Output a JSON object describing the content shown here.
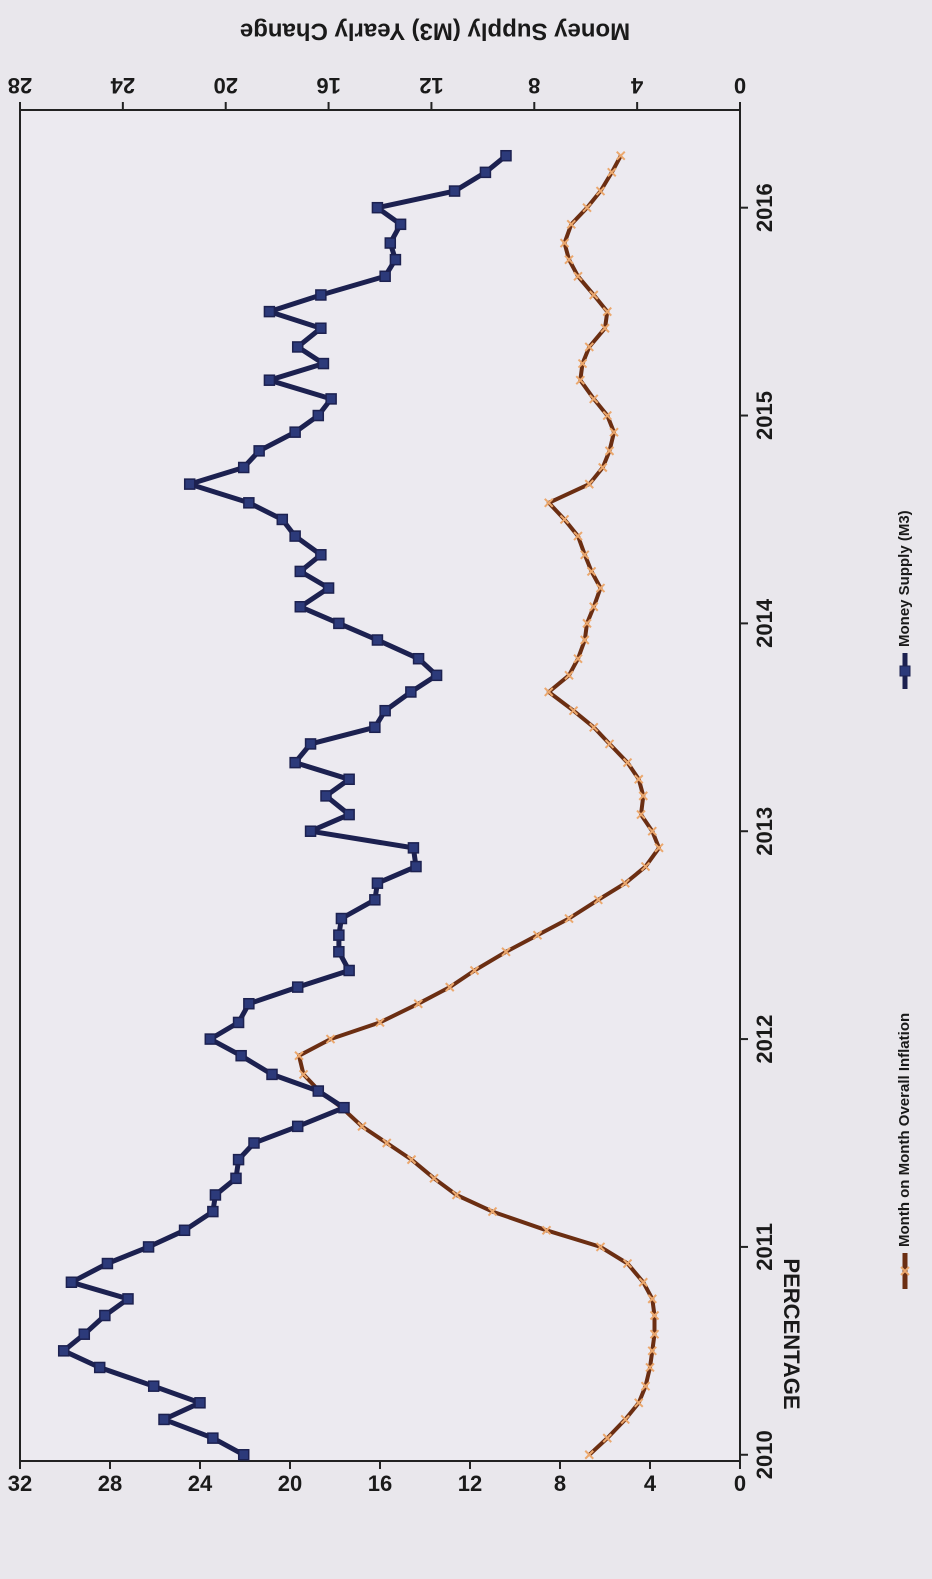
{
  "chart_data": {
    "type": "line",
    "y2_label": "Money Supply  (M3) Yearly Change",
    "ylabel": "PERCENTAGE",
    "x": [
      2010,
      2010.08,
      2010.17,
      2010.25,
      2010.33,
      2010.42,
      2010.5,
      2010.58,
      2010.67,
      2010.75,
      2010.83,
      2010.92,
      2011,
      2011.08,
      2011.17,
      2011.25,
      2011.33,
      2011.42,
      2011.5,
      2011.58,
      2011.67,
      2011.75,
      2011.83,
      2011.92,
      2012,
      2012.08,
      2012.17,
      2012.25,
      2012.33,
      2012.42,
      2012.5,
      2012.58,
      2012.67,
      2012.75,
      2012.83,
      2012.92,
      2013,
      2013.08,
      2013.17,
      2013.25,
      2013.33,
      2013.42,
      2013.5,
      2013.58,
      2013.67,
      2013.75,
      2013.83,
      2013.92,
      2014,
      2014.08,
      2014.17,
      2014.25,
      2014.33,
      2014.42,
      2014.5,
      2014.58,
      2014.67,
      2014.75,
      2014.83,
      2014.92,
      2015,
      2015.08,
      2015.17,
      2015.25,
      2015.33,
      2015.42,
      2015.5,
      2015.58,
      2015.67,
      2015.75,
      2015.83,
      2015.92,
      2016,
      2016.08,
      2016.17,
      2016.25
    ],
    "series": [
      {
        "name": "Month on Month Overall Inflation",
        "color": "#6b2e12",
        "marker_color": "#eba86e",
        "values": [
          6.7,
          5.9,
          5.1,
          4.5,
          4.2,
          4.0,
          3.9,
          3.8,
          3.8,
          3.9,
          4.3,
          5.0,
          6.2,
          8.6,
          11.0,
          12.6,
          13.6,
          14.6,
          15.7,
          16.8,
          17.7,
          18.7,
          19.4,
          19.6,
          18.2,
          16.0,
          14.3,
          12.9,
          11.8,
          10.4,
          9.0,
          7.6,
          6.3,
          5.1,
          4.2,
          3.6,
          3.9,
          4.4,
          4.3,
          4.5,
          5.0,
          5.8,
          6.5,
          7.4,
          8.5,
          7.6,
          7.2,
          6.9,
          6.8,
          6.5,
          6.2,
          6.6,
          6.9,
          7.2,
          7.8,
          8.5,
          6.7,
          6.1,
          5.8,
          5.6,
          5.9,
          6.5,
          7.1,
          7.0,
          6.7,
          6.0,
          5.9,
          6.5,
          7.2,
          7.6,
          7.8,
          7.5,
          6.8,
          6.2,
          5.7,
          5.3
        ]
      },
      {
        "name": "Money Supply (M3)",
        "color": "#1c2150",
        "marker_color": "#2c3a7a",
        "axis": "y2",
        "values": [
          19.3,
          20.5,
          22.4,
          21.0,
          22.8,
          24.9,
          26.3,
          25.5,
          24.7,
          23.8,
          26.0,
          24.6,
          23.0,
          21.6,
          20.5,
          20.4,
          19.6,
          19.5,
          18.9,
          17.2,
          15.4,
          16.4,
          18.2,
          19.4,
          20.6,
          19.5,
          19.1,
          17.2,
          15.2,
          15.6,
          15.6,
          15.5,
          14.2,
          14.1,
          12.6,
          12.7,
          16.7,
          15.2,
          16.1,
          15.2,
          17.3,
          16.7,
          14.2,
          13.8,
          12.8,
          11.8,
          12.5,
          14.1,
          15.6,
          17.1,
          16.0,
          17.1,
          16.3,
          17.3,
          17.8,
          19.1,
          21.4,
          19.3,
          18.7,
          17.3,
          16.4,
          15.9,
          18.3,
          16.2,
          17.2,
          16.3,
          18.3,
          16.3,
          13.8,
          13.4,
          13.6,
          13.2,
          14.1,
          11.1,
          9.9,
          9.1
        ]
      }
    ],
    "xlim": [
      2009.97,
      2016.47
    ],
    "xticks": [
      2010,
      2011,
      2012,
      2013,
      2014,
      2015,
      2016
    ],
    "ylim": [
      0,
      32
    ],
    "yticks": [
      0,
      4,
      8,
      12,
      16,
      20,
      24,
      28,
      32
    ],
    "y2lim": [
      0,
      28
    ],
    "y2ticks": [
      0,
      4,
      8,
      12,
      16,
      20,
      24,
      28
    ],
    "grid": false
  }
}
